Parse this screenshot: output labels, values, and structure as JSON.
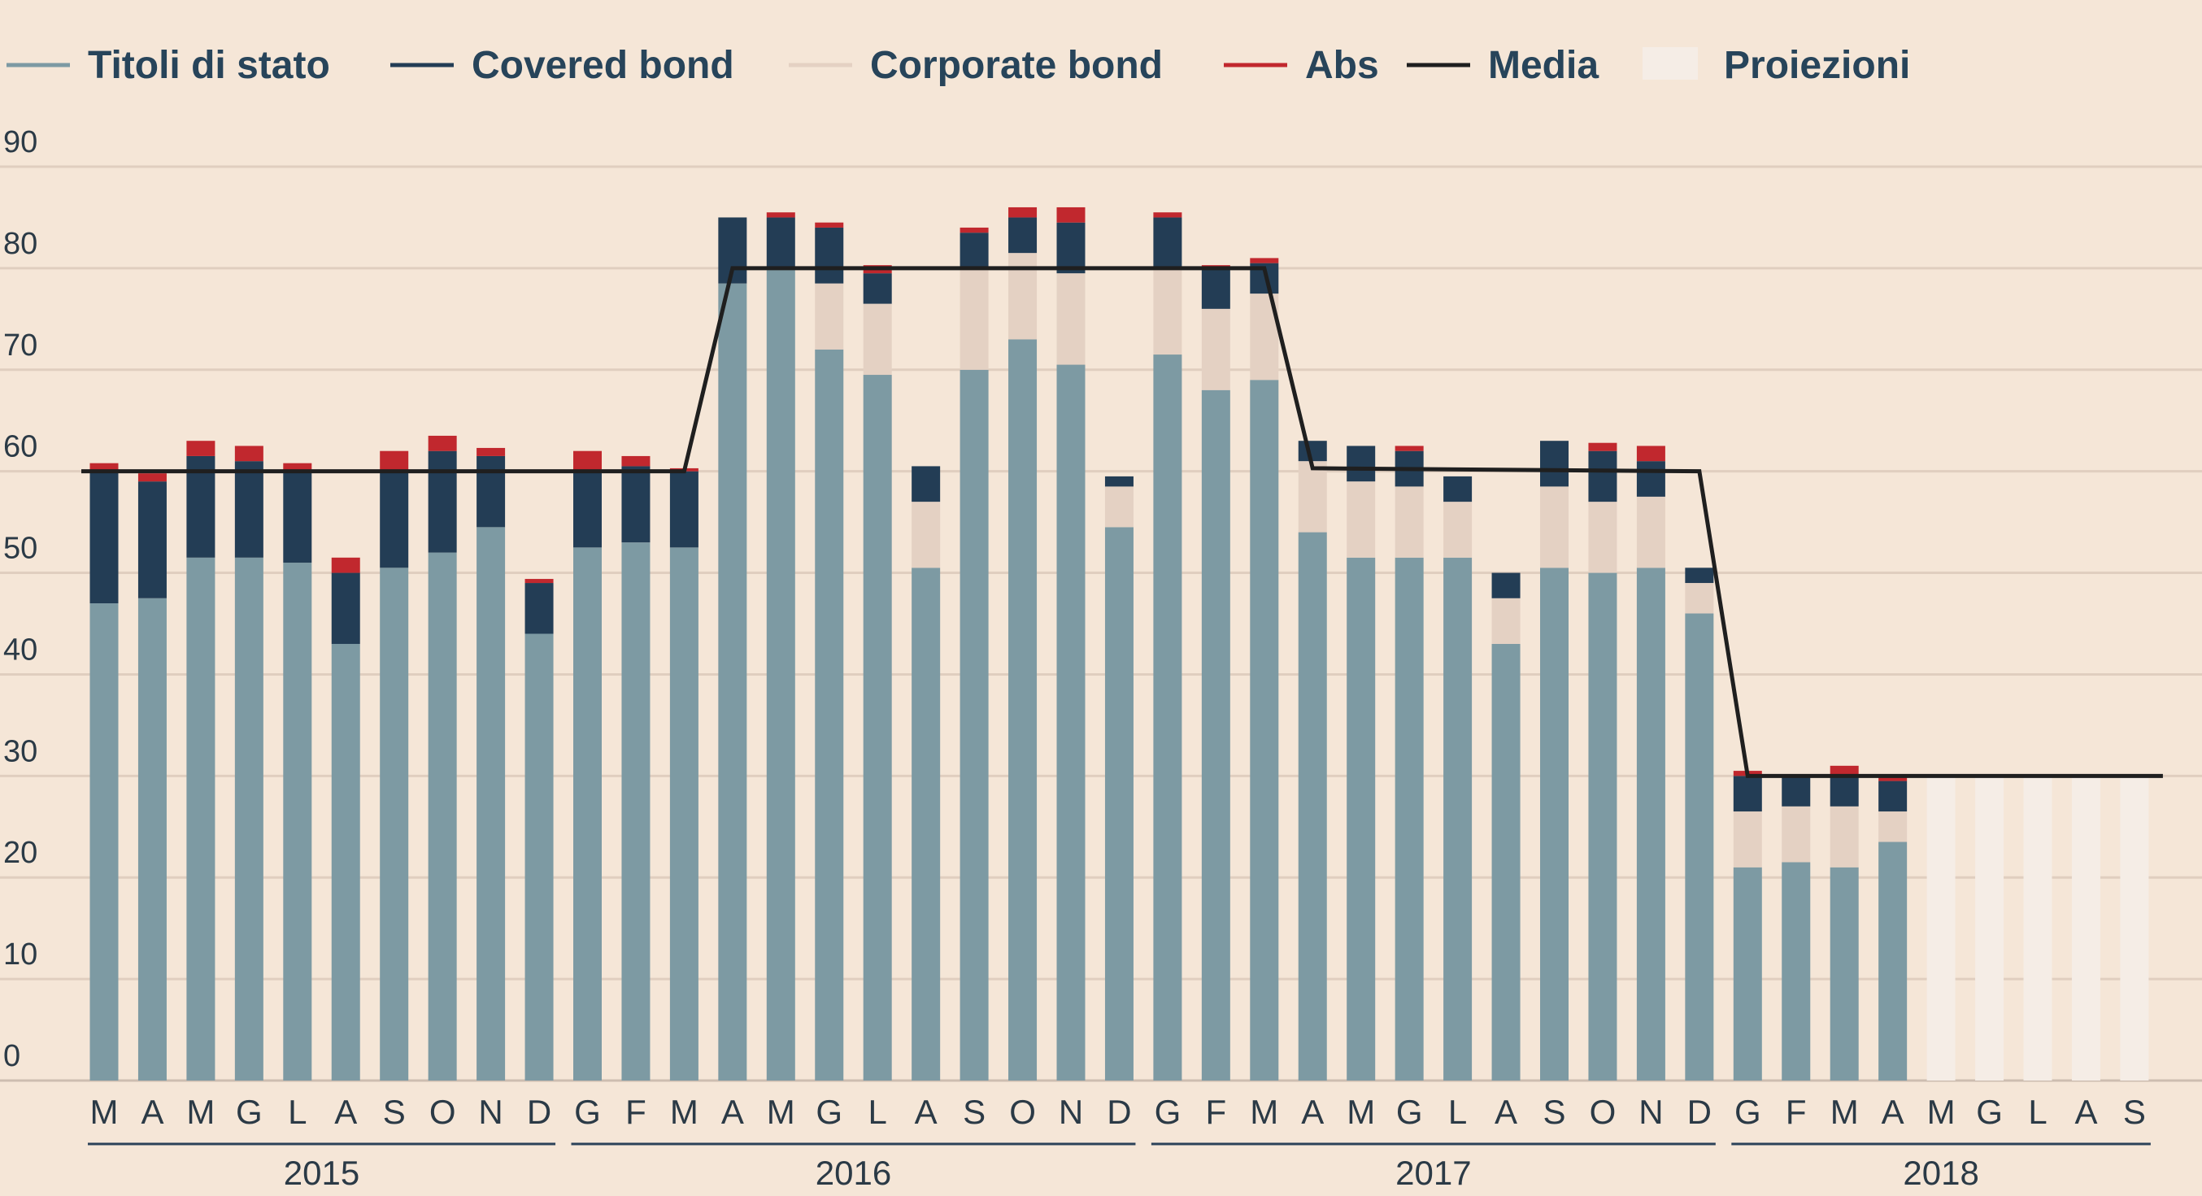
{
  "chart_data": {
    "type": "bar",
    "stacked": true,
    "legend": {
      "placement": "top-left",
      "items": [
        {
          "label": "Titoli di stato",
          "color": "#7d9aa3",
          "kind": "line"
        },
        {
          "label": "Covered bond",
          "color": "#233d55",
          "kind": "line"
        },
        {
          "label": "Corporate bond",
          "color": "#e4d1c3",
          "kind": "line"
        },
        {
          "label": "Abs",
          "color": "#c1282e",
          "kind": "line"
        },
        {
          "label": "Media",
          "color": "#1f1f1f",
          "kind": "line"
        },
        {
          "label": "Proiezioni",
          "color": "#f5ede6",
          "kind": "box"
        }
      ]
    },
    "y_ticks": [
      "0",
      "10",
      "20",
      "30",
      "40",
      "50",
      "60",
      "70",
      "80",
      "90"
    ],
    "ylim": [
      0,
      90
    ],
    "grid": true,
    "categories": [
      "M",
      "A",
      "M",
      "G",
      "L",
      "A",
      "S",
      "O",
      "N",
      "D",
      "G",
      "F",
      "M",
      "A",
      "M",
      "G",
      "L",
      "A",
      "S",
      "O",
      "N",
      "D",
      "G",
      "F",
      "M",
      "A",
      "M",
      "G",
      "L",
      "A",
      "S",
      "O",
      "N",
      "D",
      "G",
      "F",
      "M",
      "A",
      "M",
      "G",
      "L",
      "A",
      "S"
    ],
    "years": [
      {
        "label": "2015",
        "from": 0,
        "to": 9
      },
      {
        "label": "2016",
        "from": 10,
        "to": 21
      },
      {
        "label": "2017",
        "from": 22,
        "to": 33
      },
      {
        "label": "2018",
        "from": 34,
        "to": 42
      }
    ],
    "series": [
      {
        "name": "Titoli di stato",
        "color": "#7d9aa3",
        "values": [
          47,
          47.5,
          51.5,
          51.5,
          51,
          43,
          50.5,
          52,
          54.5,
          44,
          52.5,
          53,
          52.5,
          78.5,
          80,
          72,
          69.5,
          50.5,
          70,
          73,
          70.5,
          54.5,
          71.5,
          68,
          69,
          54,
          51.5,
          51.5,
          51.5,
          43,
          50.5,
          50,
          50.5,
          46,
          21,
          21.5,
          21,
          23.5,
          null,
          null,
          null,
          null,
          null
        ]
      },
      {
        "name": "Corporate bond",
        "color": "#e4d1c3",
        "values": [
          0,
          0,
          0,
          0,
          0,
          0,
          0,
          0,
          0,
          0,
          0,
          0,
          0,
          0,
          0,
          6.5,
          7,
          6.5,
          10,
          8.5,
          9,
          4,
          8.5,
          8,
          8.5,
          7,
          7.5,
          7,
          5.5,
          4.5,
          8,
          7,
          7,
          3,
          5.5,
          5.5,
          6,
          3,
          null,
          null,
          null,
          null,
          null
        ]
      },
      {
        "name": "Covered bond",
        "color": "#233d55",
        "values": [
          13,
          11.5,
          10,
          9.5,
          9,
          7,
          9.5,
          10,
          7,
          5,
          7.5,
          7.5,
          7.5,
          6.5,
          5,
          5.5,
          3,
          3.5,
          3.5,
          3.5,
          5,
          1,
          5,
          4,
          3,
          2,
          3.5,
          3.5,
          2.5,
          2.5,
          4.5,
          5,
          3.5,
          1.5,
          3.5,
          3,
          3,
          3,
          null,
          null,
          null,
          null,
          null
        ]
      },
      {
        "name": "Abs",
        "color": "#c1282e",
        "values": [
          0.8,
          0.8,
          1.5,
          1.5,
          0.8,
          1.5,
          2,
          1.5,
          0.8,
          0.4,
          2,
          1,
          0.3,
          0,
          0.5,
          0.5,
          0.8,
          0,
          0.5,
          1,
          1.5,
          0,
          0.5,
          0.3,
          0.5,
          0,
          0,
          0.5,
          0,
          0,
          0,
          0.8,
          1.5,
          0,
          0.5,
          0,
          1,
          0.6,
          null,
          null,
          null,
          null,
          null
        ]
      },
      {
        "name": "Media",
        "color": "#1f1f1f",
        "type": "line",
        "x": [
          0,
          12,
          13,
          24,
          25,
          33,
          34,
          42
        ],
        "values": [
          60,
          60,
          80,
          80,
          60.3,
          60,
          30,
          30
        ]
      }
    ],
    "projection_bars": {
      "from": 38,
      "to": 42,
      "value": 30,
      "color": "#f5ede6"
    }
  }
}
